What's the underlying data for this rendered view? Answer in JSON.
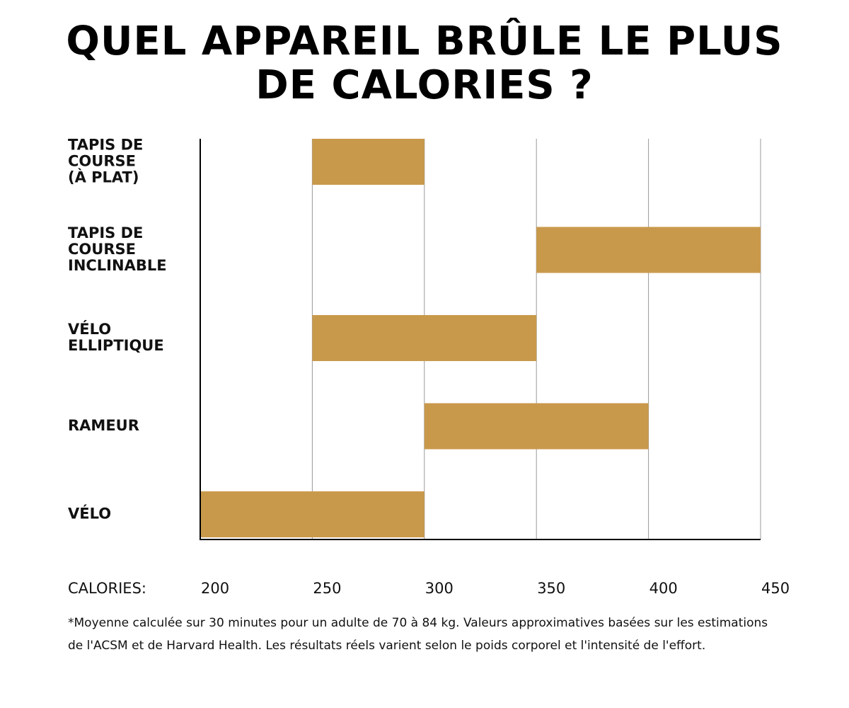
{
  "title_lines": [
    "QUEL APPAREIL BRÛLE LE PLUS",
    "DE CALORIES ?"
  ],
  "footnote": "*Moyenne calculée sur 30 minutes pour un adulte de 70 à 84 kg. Valeurs approximatives basées sur les estimations de l'ACSM et de Harvard Health. Les résultats réels varient selon le poids corporel et l'intensité de l'effort.",
  "colors": {
    "bar": "#C9994B",
    "grid": "#999999",
    "axis": "#000000"
  },
  "chart_data": {
    "type": "bar",
    "orientation": "horizontal",
    "title": "QUEL APPAREIL BRÛLE LE PLUS DE CALORIES ?",
    "xlabel": "CALORIES:",
    "xlim": [
      200,
      450
    ],
    "xticks": [
      200,
      250,
      300,
      350,
      400,
      450
    ],
    "grid": true,
    "legend": "none",
    "categories": [
      {
        "lines": [
          "TAPIS DE",
          "COURSE",
          "(À PLAT)"
        ],
        "range": [
          250,
          300
        ]
      },
      {
        "lines": [
          "TAPIS DE",
          "COURSE",
          "INCLINABLE"
        ],
        "range": [
          350,
          450
        ]
      },
      {
        "lines": [
          "VÉLO",
          "ELLIPTIQUE"
        ],
        "range": [
          250,
          350
        ]
      },
      {
        "lines": [
          "RAMEUR"
        ],
        "range": [
          300,
          400
        ]
      },
      {
        "lines": [
          "VÉLO"
        ],
        "range": [
          200,
          300
        ]
      }
    ]
  }
}
